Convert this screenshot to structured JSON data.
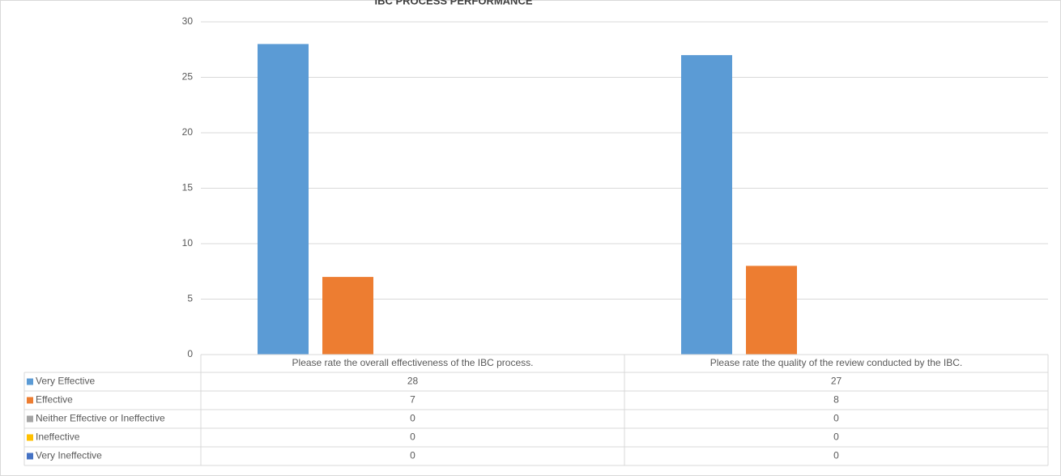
{
  "chart_data": {
    "type": "bar",
    "title": "IBC PROCESS PERFORMANCE",
    "categories": [
      "Please rate the overall effectiveness of the IBC process.",
      "Please rate the quality of the review conducted by the IBC."
    ],
    "series": [
      {
        "name": "Very Effective",
        "color": "#5b9bd5",
        "values": [
          28,
          27
        ]
      },
      {
        "name": "Effective",
        "color": "#ed7d31",
        "values": [
          7,
          8
        ]
      },
      {
        "name": "Neither Effective or Ineffective",
        "color": "#a5a5a5",
        "values": [
          0,
          0
        ]
      },
      {
        "name": "Ineffective",
        "color": "#ffc000",
        "values": [
          0,
          0
        ]
      },
      {
        "name": "Very Ineffective",
        "color": "#4472c4",
        "values": [
          0,
          0
        ]
      }
    ],
    "ylim": [
      0,
      30
    ],
    "yticks": [
      0,
      5,
      10,
      15,
      20,
      25,
      30
    ],
    "grid": true
  }
}
